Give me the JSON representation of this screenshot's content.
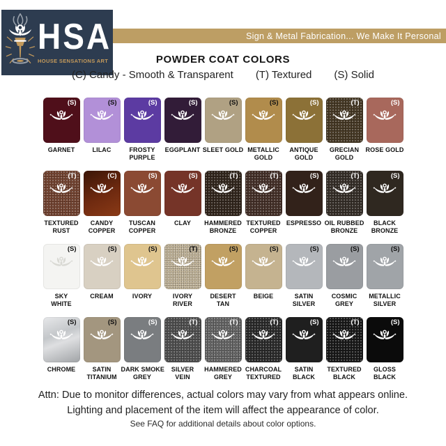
{
  "logo": {
    "acronym": "HSA",
    "subtitle": "HOUSE SENSATIONS ART",
    "navy": "#2d3c50",
    "gold": "#c49a5b"
  },
  "banner": {
    "text": "Sign & Metal Fabrication... We Make It Personal",
    "bg": "#bd9e64"
  },
  "title": "POWDER COAT COLORS",
  "legend": {
    "items": [
      "(C) Candy - Smooth & Transparent",
      "(T) Textured",
      "(S) Solid"
    ]
  },
  "swatches": [
    {
      "name": "GARNET",
      "code": "(S)",
      "color": "#4f0f1a",
      "code_color": "#ffffff"
    },
    {
      "name": "LILAC",
      "code": "(S)",
      "color": "#b290d8",
      "code_color": "#111111"
    },
    {
      "name": "FROSTY\nPURPLE",
      "code": "(S)",
      "color": "#5c3ba2",
      "code_color": "#ffffff"
    },
    {
      "name": "EGGPLANT",
      "code": "(S)",
      "color": "#321c38",
      "code_color": "#ffffff"
    },
    {
      "name": "SLEET GOLD",
      "code": "(S)",
      "color": "#b0a183",
      "code_color": "#111111"
    },
    {
      "name": "METALLIC\nGOLD",
      "code": "(S)",
      "color": "#b18c4c",
      "code_color": "#111111"
    },
    {
      "name": "ANTIQUE\nGOLD",
      "code": "(S)",
      "color": "#8c7137",
      "code_color": "#ffffff"
    },
    {
      "name": "GRECIAN\nGOLD",
      "code": "(T)",
      "color": "#4d3e28",
      "code_color": "#ffffff",
      "textured": true
    },
    {
      "name": "ROSE GOLD",
      "code": "(S)",
      "color": "#a8685c",
      "code_color": "#ffffff"
    },
    {
      "name": "TEXTURED\nRUST",
      "code": "(T)",
      "color": "#7e4a35",
      "code_color": "#ffffff",
      "textured": true
    },
    {
      "name": "CANDY\nCOPPER",
      "code": "(C)",
      "color": "#5e2410",
      "code_color": "#ffffff",
      "gradient": "linear-gradient(155deg, #3f1707 5%, #6f2a10 55%, #8a3a16 100%)"
    },
    {
      "name": "TUSCAN\nCOPPER",
      "code": "(S)",
      "color": "#8b4a33",
      "code_color": "#ffffff"
    },
    {
      "name": "CLAY",
      "code": "(S)",
      "color": "#753428",
      "code_color": "#ffffff"
    },
    {
      "name": "HAMMERED\nBRONZE",
      "code": "(T)",
      "color": "#36291e",
      "code_color": "#ffffff",
      "textured": true
    },
    {
      "name": "TEXTURED\nCOPPER",
      "code": "(T)",
      "color": "#4b342b",
      "code_color": "#ffffff",
      "textured": true
    },
    {
      "name": "ESPRESSO",
      "code": "(S)",
      "color": "#32221a",
      "code_color": "#ffffff"
    },
    {
      "name": "OIL RUBBED\nBRONZE",
      "code": "(T)",
      "color": "#3a322b",
      "code_color": "#ffffff",
      "textured": true
    },
    {
      "name": "BLACK\nBRONZE",
      "code": "(S)",
      "color": "#2f2820",
      "code_color": "#ffffff"
    },
    {
      "name": "SKY\nWHITE",
      "code": "(S)",
      "color": "#f4f4f2",
      "code_color": "#111111",
      "lotus": "#d9d9d4"
    },
    {
      "name": "CREAM",
      "code": "(S)",
      "color": "#d8d0c2",
      "code_color": "#111111"
    },
    {
      "name": "IVORY",
      "code": "(S)",
      "color": "#dfc58f",
      "code_color": "#111111"
    },
    {
      "name": "IVORY\nRIVER",
      "code": "(T)",
      "color": "#d4c6a9",
      "code_color": "#111111",
      "textured": true
    },
    {
      "name": "DESERT\nTAN",
      "code": "(S)",
      "color": "#c1a063",
      "code_color": "#111111"
    },
    {
      "name": "BEIGE",
      "code": "(S)",
      "color": "#c5b390",
      "code_color": "#111111"
    },
    {
      "name": "SATIN\nSILVER",
      "code": "(S)",
      "color": "#b4b7bb",
      "code_color": "#111111"
    },
    {
      "name": "COSMIC\nGREY",
      "code": "(S)",
      "color": "#9a9da1",
      "code_color": "#111111"
    },
    {
      "name": "METALLIC\nSILVER",
      "code": "(S)",
      "color": "#a0a4a8",
      "code_color": "#111111"
    },
    {
      "name": "CHROME",
      "code": "(S)",
      "color": "#c9ccce",
      "code_color": "#111111",
      "gradient": "linear-gradient(160deg, #e7e8ea 0%, #c4c7ca 38%, #dedfe1 55%, #a0a3a6 100%)"
    },
    {
      "name": "SATIN\nTITANIUM",
      "code": "(S)",
      "color": "#a3967f",
      "code_color": "#111111"
    },
    {
      "name": "DARK SMOKE\nGREY",
      "code": "(S)",
      "color": "#7a7d80",
      "code_color": "#ffffff"
    },
    {
      "name": "SILVER\nVEIN",
      "code": "(T)",
      "color": "#565656",
      "code_color": "#ffffff",
      "textured": true
    },
    {
      "name": "HAMMERED\nGREY",
      "code": "(T)",
      "color": "#6e6e6e",
      "code_color": "#ffffff",
      "textured": true
    },
    {
      "name": "CHARCOAL\nTEXTURED",
      "code": "(T)",
      "color": "#2e2e2e",
      "code_color": "#ffffff",
      "textured": true
    },
    {
      "name": "SATIN\nBLACK",
      "code": "(S)",
      "color": "#1f1f1f",
      "code_color": "#ffffff"
    },
    {
      "name": "TEXTURED\nBLACK",
      "code": "(T)",
      "color": "#1a1a1a",
      "code_color": "#ffffff",
      "textured": true
    },
    {
      "name": "GLOSS\nBLACK",
      "code": "(S)",
      "color": "#0b0b0b",
      "code_color": "#ffffff"
    }
  ],
  "footer": {
    "attn_line1": "Attn: Due to monitor differences, actual colors may vary from what appears online.",
    "attn_line2": "Lighting and placement of the item will affect the appearance of color.",
    "faq": "See FAQ for additional details about color options."
  }
}
